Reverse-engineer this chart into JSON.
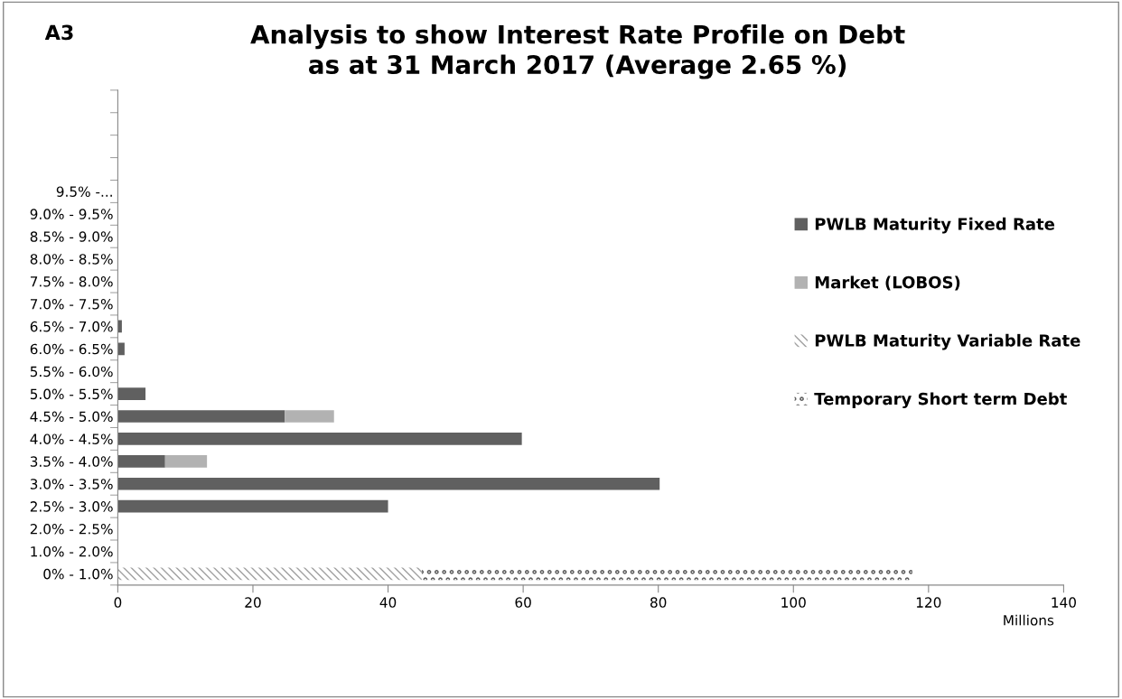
{
  "chart_data": {
    "type": "bar",
    "orientation": "horizontal",
    "stacked": true,
    "title": "Analysis to show Interest Rate Profile on Debt\nas at 31 March 2017 (Average 2.65 %)",
    "xlabel": "Millions",
    "annotations": [
      "A3"
    ],
    "categories": [
      null,
      null,
      null,
      null,
      "9.5% -...",
      "9.0% - 9.5%",
      "8.5% - 9.0%",
      "8.0% - 8.5%",
      "7.5% - 8.0%",
      "7.0% - 7.5%",
      "6.5% - 7.0%",
      "6.0% - 6.5%",
      "5.5% - 6.0%",
      "5.0% - 5.5%",
      "4.5% - 5.0%",
      "4.0% - 4.5%",
      "3.5% - 4.0%",
      "3.0% - 3.5%",
      "2.5% - 3.0%",
      "2.0% - 2.5%",
      "1.0% - 2.0%",
      "0% - 1.0%"
    ],
    "series": [
      {
        "name": "PWLB Maturity Fixed Rate",
        "color": "#606060",
        "values": [
          null,
          null,
          null,
          null,
          null,
          null,
          null,
          null,
          null,
          null,
          0.6,
          1.0,
          null,
          4.1,
          24.7,
          59.8,
          7.0,
          80.2,
          40.0,
          null,
          null,
          null
        ]
      },
      {
        "name": "Market (LOBOS)",
        "color": "#b2b2b2",
        "values": [
          null,
          null,
          null,
          null,
          null,
          null,
          null,
          null,
          null,
          null,
          null,
          null,
          null,
          null,
          7.3,
          null,
          6.2,
          null,
          null,
          null,
          null,
          null
        ]
      },
      {
        "name": "PWLB Maturity Variable Rate",
        "color": "#a0a0a0",
        "values": [
          null,
          null,
          null,
          null,
          null,
          null,
          null,
          null,
          null,
          null,
          null,
          null,
          null,
          null,
          null,
          null,
          null,
          null,
          null,
          null,
          null,
          45.0
        ]
      },
      {
        "name": "Temporary Short term Debt",
        "color": "#606060",
        "values": [
          null,
          null,
          null,
          null,
          null,
          null,
          null,
          null,
          null,
          null,
          null,
          null,
          null,
          null,
          null,
          null,
          null,
          null,
          null,
          null,
          null,
          72.6
        ]
      }
    ],
    "xlim": [
      0,
      140
    ],
    "xticks": [
      0,
      20,
      40,
      60,
      80,
      100,
      120,
      140
    ],
    "grid": false,
    "legend": "right"
  }
}
